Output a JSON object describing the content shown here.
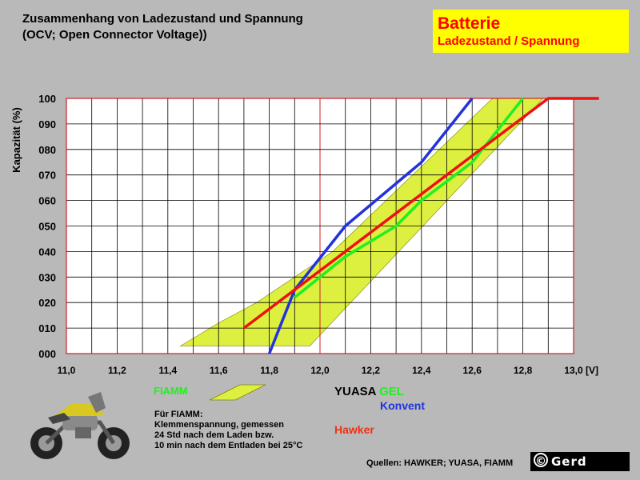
{
  "header": {
    "title_line1": "Zusammenhang von Ladezustand und Spannung",
    "title_line2": "(OCV; Open Connector Voltage))"
  },
  "badge": {
    "main": "Batterie",
    "sub": "Ladezustand / Spannung"
  },
  "legend": {
    "fiamm_label": "FIAMM",
    "yuasa_label": "YUASA",
    "gel_label": "GEL",
    "konvent_label": "Konvent",
    "hawker_label": "Hawker"
  },
  "note": {
    "line1": "Für FIAMM:",
    "line2": "Klemmenspannung, gemessen",
    "line3": "24 Std nach dem Laden bzw.",
    "line4": "10 min nach dem Entladen bei 25°C"
  },
  "credit": "Quellen: HAWKER; YUASA, FIAMM",
  "logo": {
    "symbol": "©",
    "text": "Gerd"
  },
  "colors": {
    "background": "#b9b9b9",
    "plot_bg": "#ffffff",
    "band_fill": "#ddf040",
    "gel": "#22ee22",
    "konvent": "#2233dd",
    "hawker": "#ee1111",
    "badge": "#ffff00"
  },
  "chart_data": {
    "type": "line",
    "title": "Zusammenhang von Ladezustand und Spannung",
    "subtitle": "(OCV; Open Connector Voltage))",
    "xlabel": "",
    "ylabel": "Kapazität (%)",
    "x_unit_label": "[V]",
    "xlim": [
      11.0,
      13.0
    ],
    "ylim": [
      0,
      100
    ],
    "x_ticks": [
      "11,0",
      "11,2",
      "11,4",
      "11,6",
      "11,8",
      "12,0",
      "12,2",
      "12,4",
      "12,6",
      "12,8",
      "13,0"
    ],
    "y_ticks": [
      "000",
      "010",
      "020",
      "030",
      "040",
      "050",
      "060",
      "070",
      "080",
      "090",
      "100"
    ],
    "grid": true,
    "band": {
      "name": "FIAMM",
      "polygon": [
        [
          11.45,
          3
        ],
        [
          11.96,
          3
        ],
        [
          12.88,
          100
        ],
        [
          12.68,
          100
        ],
        [
          12.05,
          40
        ],
        [
          11.75,
          20
        ],
        [
          11.6,
          12
        ],
        [
          11.45,
          3
        ]
      ]
    },
    "series": [
      {
        "name": "GEL",
        "color": "#22ee22",
        "x": [
          11.9,
          12.1,
          12.3,
          12.4,
          12.6,
          12.8
        ],
        "y": [
          22,
          38,
          50,
          60,
          75,
          100
        ]
      },
      {
        "name": "Konvent",
        "color": "#2233dd",
        "x": [
          11.8,
          11.9,
          12.1,
          12.4,
          12.6
        ],
        "y": [
          0,
          25,
          50,
          75,
          100
        ]
      },
      {
        "name": "Hawker",
        "color": "#ee1111",
        "x": [
          11.7,
          12.9,
          13.1
        ],
        "y": [
          10,
          100,
          100
        ]
      }
    ]
  }
}
